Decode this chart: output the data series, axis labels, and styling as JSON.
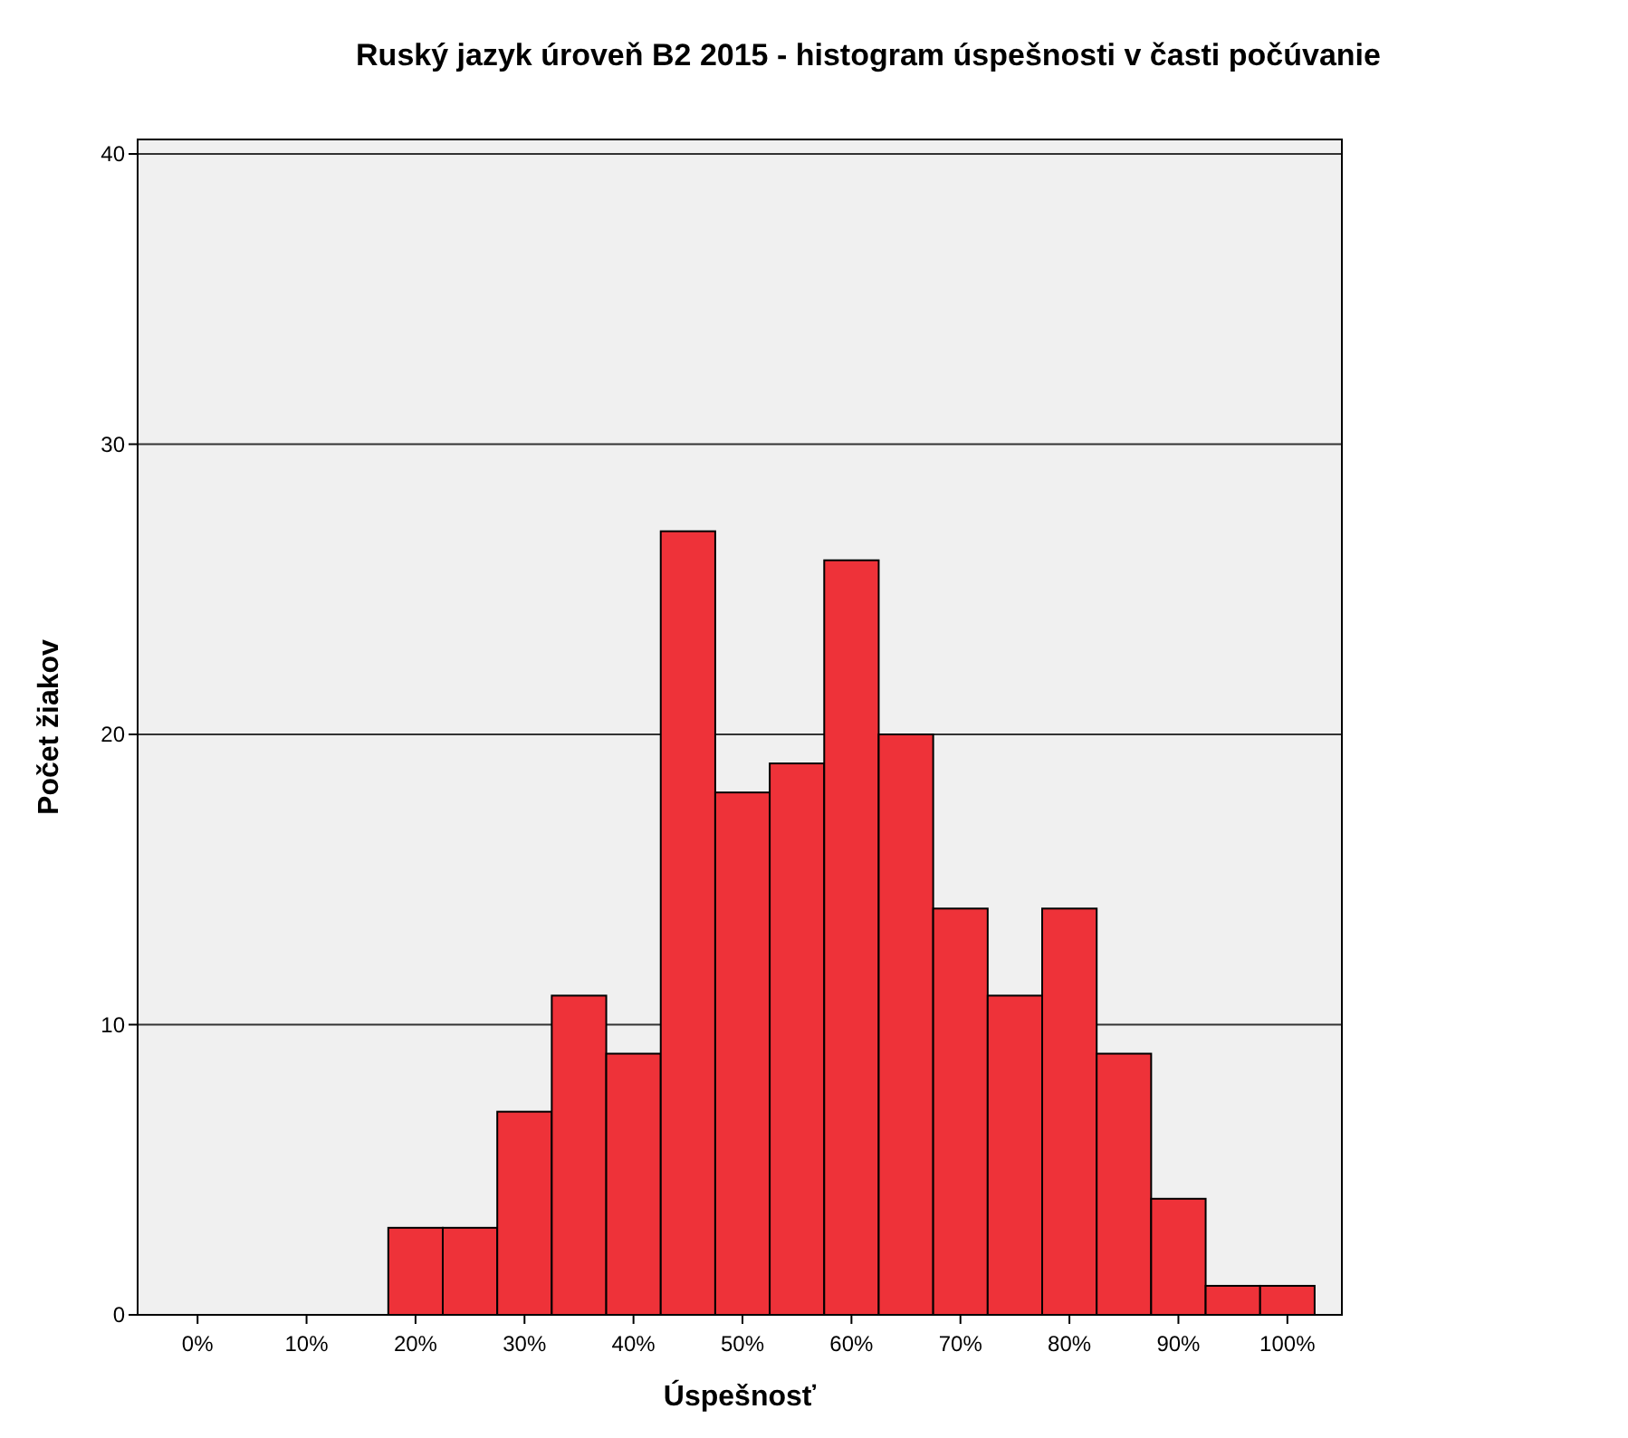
{
  "chart_data": {
    "type": "histogram",
    "title": "Ruský jazyk úroveň B2 2015 - histogram úspešnosti v časti počúvanie",
    "xlabel": "Úspešnosť",
    "ylabel": "Počet žiakov",
    "bins": [
      17.5,
      22.5,
      27.5,
      32.5,
      37.5,
      42.5,
      47.5,
      52.5,
      57.5,
      62.5,
      67.5,
      72.5,
      77.5,
      82.5,
      87.5,
      92.5,
      97.5,
      102.5
    ],
    "values": [
      3,
      3,
      7,
      11,
      9,
      27,
      18,
      19,
      26,
      20,
      14,
      11,
      14,
      9,
      4,
      1,
      1
    ],
    "color": "#ee3239",
    "xlim": [
      -5.5,
      105
    ],
    "xticks": [
      {
        "value": 0,
        "label": "0%"
      },
      {
        "value": 10,
        "label": "10%"
      },
      {
        "value": 20,
        "label": "20%"
      },
      {
        "value": 30,
        "label": "30%"
      },
      {
        "value": 40,
        "label": "40%"
      },
      {
        "value": 50,
        "label": "50%"
      },
      {
        "value": 60,
        "label": "60%"
      },
      {
        "value": 70,
        "label": "70%"
      },
      {
        "value": 80,
        "label": "80%"
      },
      {
        "value": 90,
        "label": "90%"
      },
      {
        "value": 100,
        "label": "100%"
      }
    ],
    "ylim": [
      0,
      40.5
    ],
    "yticks": [
      0,
      10,
      20,
      30,
      40
    ],
    "grid": "y"
  }
}
